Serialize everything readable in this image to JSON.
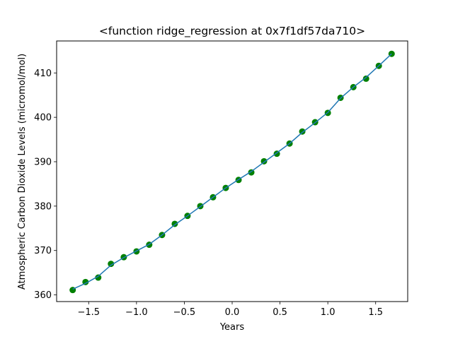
{
  "chart_data": {
    "type": "line",
    "title": "<function ridge_regression at 0x7f1df57da710>",
    "xlabel": "Years",
    "ylabel": "Atmospheric Carbon Dioxide Levels (micromol/mol)",
    "xlim": [
      -1.835,
      1.835
    ],
    "ylim": [
      358.5,
      417.2
    ],
    "xticks": [
      -1.5,
      -1.0,
      -0.5,
      0.0,
      0.5,
      1.0,
      1.5
    ],
    "xtick_labels": [
      "−1.5",
      "−1.0",
      "−0.5",
      "0.0",
      "0.5",
      "1.0",
      "1.5"
    ],
    "yticks": [
      360,
      370,
      380,
      390,
      400,
      410
    ],
    "ytick_labels": [
      "360",
      "370",
      "380",
      "390",
      "400",
      "410"
    ],
    "grid": false,
    "series": [
      {
        "kind": "scatter",
        "color": "#008000",
        "x": [
          -1.667,
          -1.533,
          -1.4,
          -1.267,
          -1.133,
          -1.0,
          -0.867,
          -0.733,
          -0.6,
          -0.467,
          -0.333,
          -0.2,
          -0.067,
          0.067,
          0.2,
          0.333,
          0.467,
          0.6,
          0.733,
          0.867,
          1.0,
          1.133,
          1.267,
          1.4,
          1.533,
          1.667
        ],
        "y": [
          361.1,
          362.9,
          363.9,
          367.0,
          368.5,
          369.8,
          371.3,
          373.5,
          376.0,
          377.8,
          380.0,
          382.0,
          384.1,
          385.9,
          387.6,
          390.1,
          391.8,
          394.1,
          396.8,
          398.9,
          401.0,
          404.4,
          406.8,
          408.7,
          411.6,
          414.3
        ]
      },
      {
        "kind": "line",
        "color": "#1f77b4",
        "x": [
          -1.667,
          -1.533,
          -1.4,
          -1.267,
          -1.133,
          -1.0,
          -0.867,
          -0.733,
          -0.6,
          -0.467,
          -0.333,
          -0.2,
          -0.067,
          0.067,
          0.2,
          0.333,
          0.467,
          0.6,
          0.733,
          0.867,
          1.0,
          1.133,
          1.267,
          1.4,
          1.533,
          1.667
        ],
        "y": [
          361.3,
          362.6,
          364.2,
          366.7,
          368.4,
          369.9,
          371.4,
          373.5,
          375.8,
          377.8,
          379.9,
          382.0,
          384.1,
          386.0,
          387.8,
          389.9,
          392.0,
          394.1,
          396.6,
          398.8,
          401.1,
          404.3,
          406.8,
          409.0,
          411.6,
          414.3
        ]
      }
    ]
  }
}
